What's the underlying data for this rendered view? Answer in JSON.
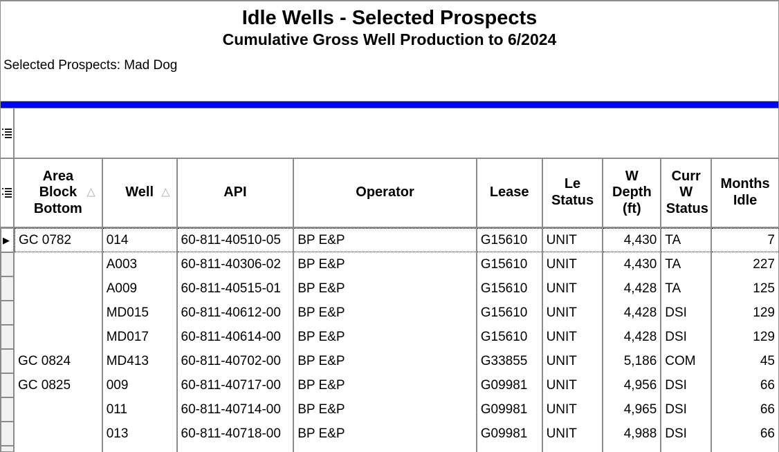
{
  "header": {
    "title": "Idle Wells - Selected Prospects",
    "subtitle": "Cumulative Gross Well Production to 6/2024",
    "selected_prospects": "Selected Prospects: Mad Dog"
  },
  "colors": {
    "accent_bar": "#0000FF",
    "grid_border": "#8c8c8c",
    "text": "#000000",
    "gutter_fill": "#f1f1f1"
  },
  "icons": {
    "band_icon": "grid-list-icon",
    "header_gutter_icon": "grid-list-icon",
    "current_row_marker": "▶",
    "sort_ascending_glyph": "△"
  },
  "table": {
    "columns": [
      {
        "label": "Area Block Bottom",
        "sorted": true
      },
      {
        "label": "Well",
        "sorted": true
      },
      {
        "label": "API",
        "sorted": false
      },
      {
        "label": "Operator",
        "sorted": false
      },
      {
        "label": "Lease",
        "sorted": false
      },
      {
        "label": "Le Status",
        "sorted": false
      },
      {
        "label": "W Depth (ft)",
        "sorted": false
      },
      {
        "label": "Curr W Status",
        "sorted": false
      },
      {
        "label": "Months Idle",
        "sorted": false
      }
    ],
    "rows": [
      [
        "GC 0782",
        "014",
        "60-811-40510-05",
        "BP E&P",
        "G15610",
        "UNIT",
        "4,430",
        "TA",
        "7"
      ],
      [
        "",
        "A003",
        "60-811-40306-02",
        "BP E&P",
        "G15610",
        "UNIT",
        "4,430",
        "TA",
        "227"
      ],
      [
        "",
        "A009",
        "60-811-40515-01",
        "BP E&P",
        "G15610",
        "UNIT",
        "4,428",
        "TA",
        "125"
      ],
      [
        "",
        "MD015",
        "60-811-40612-00",
        "BP E&P",
        "G15610",
        "UNIT",
        "4,428",
        "DSI",
        "129"
      ],
      [
        "",
        "MD017",
        "60-811-40614-00",
        "BP E&P",
        "G15610",
        "UNIT",
        "4,428",
        "DSI",
        "129"
      ],
      [
        "GC 0824",
        "MD413",
        "60-811-40702-00",
        "BP E&P",
        "G33855",
        "UNIT",
        "5,186",
        "COM",
        "45"
      ],
      [
        "GC 0825",
        "009",
        "60-811-40717-00",
        "BP E&P",
        "G09981",
        "UNIT",
        "4,956",
        "DSI",
        "66"
      ],
      [
        "",
        "011",
        "60-811-40714-00",
        "BP E&P",
        "G09981",
        "UNIT",
        "4,965",
        "DSI",
        "66"
      ],
      [
        "",
        "013",
        "60-811-40718-00",
        "BP E&P",
        "G09981",
        "UNIT",
        "4,988",
        "DSI",
        "66"
      ]
    ],
    "current_row_index": 0
  }
}
